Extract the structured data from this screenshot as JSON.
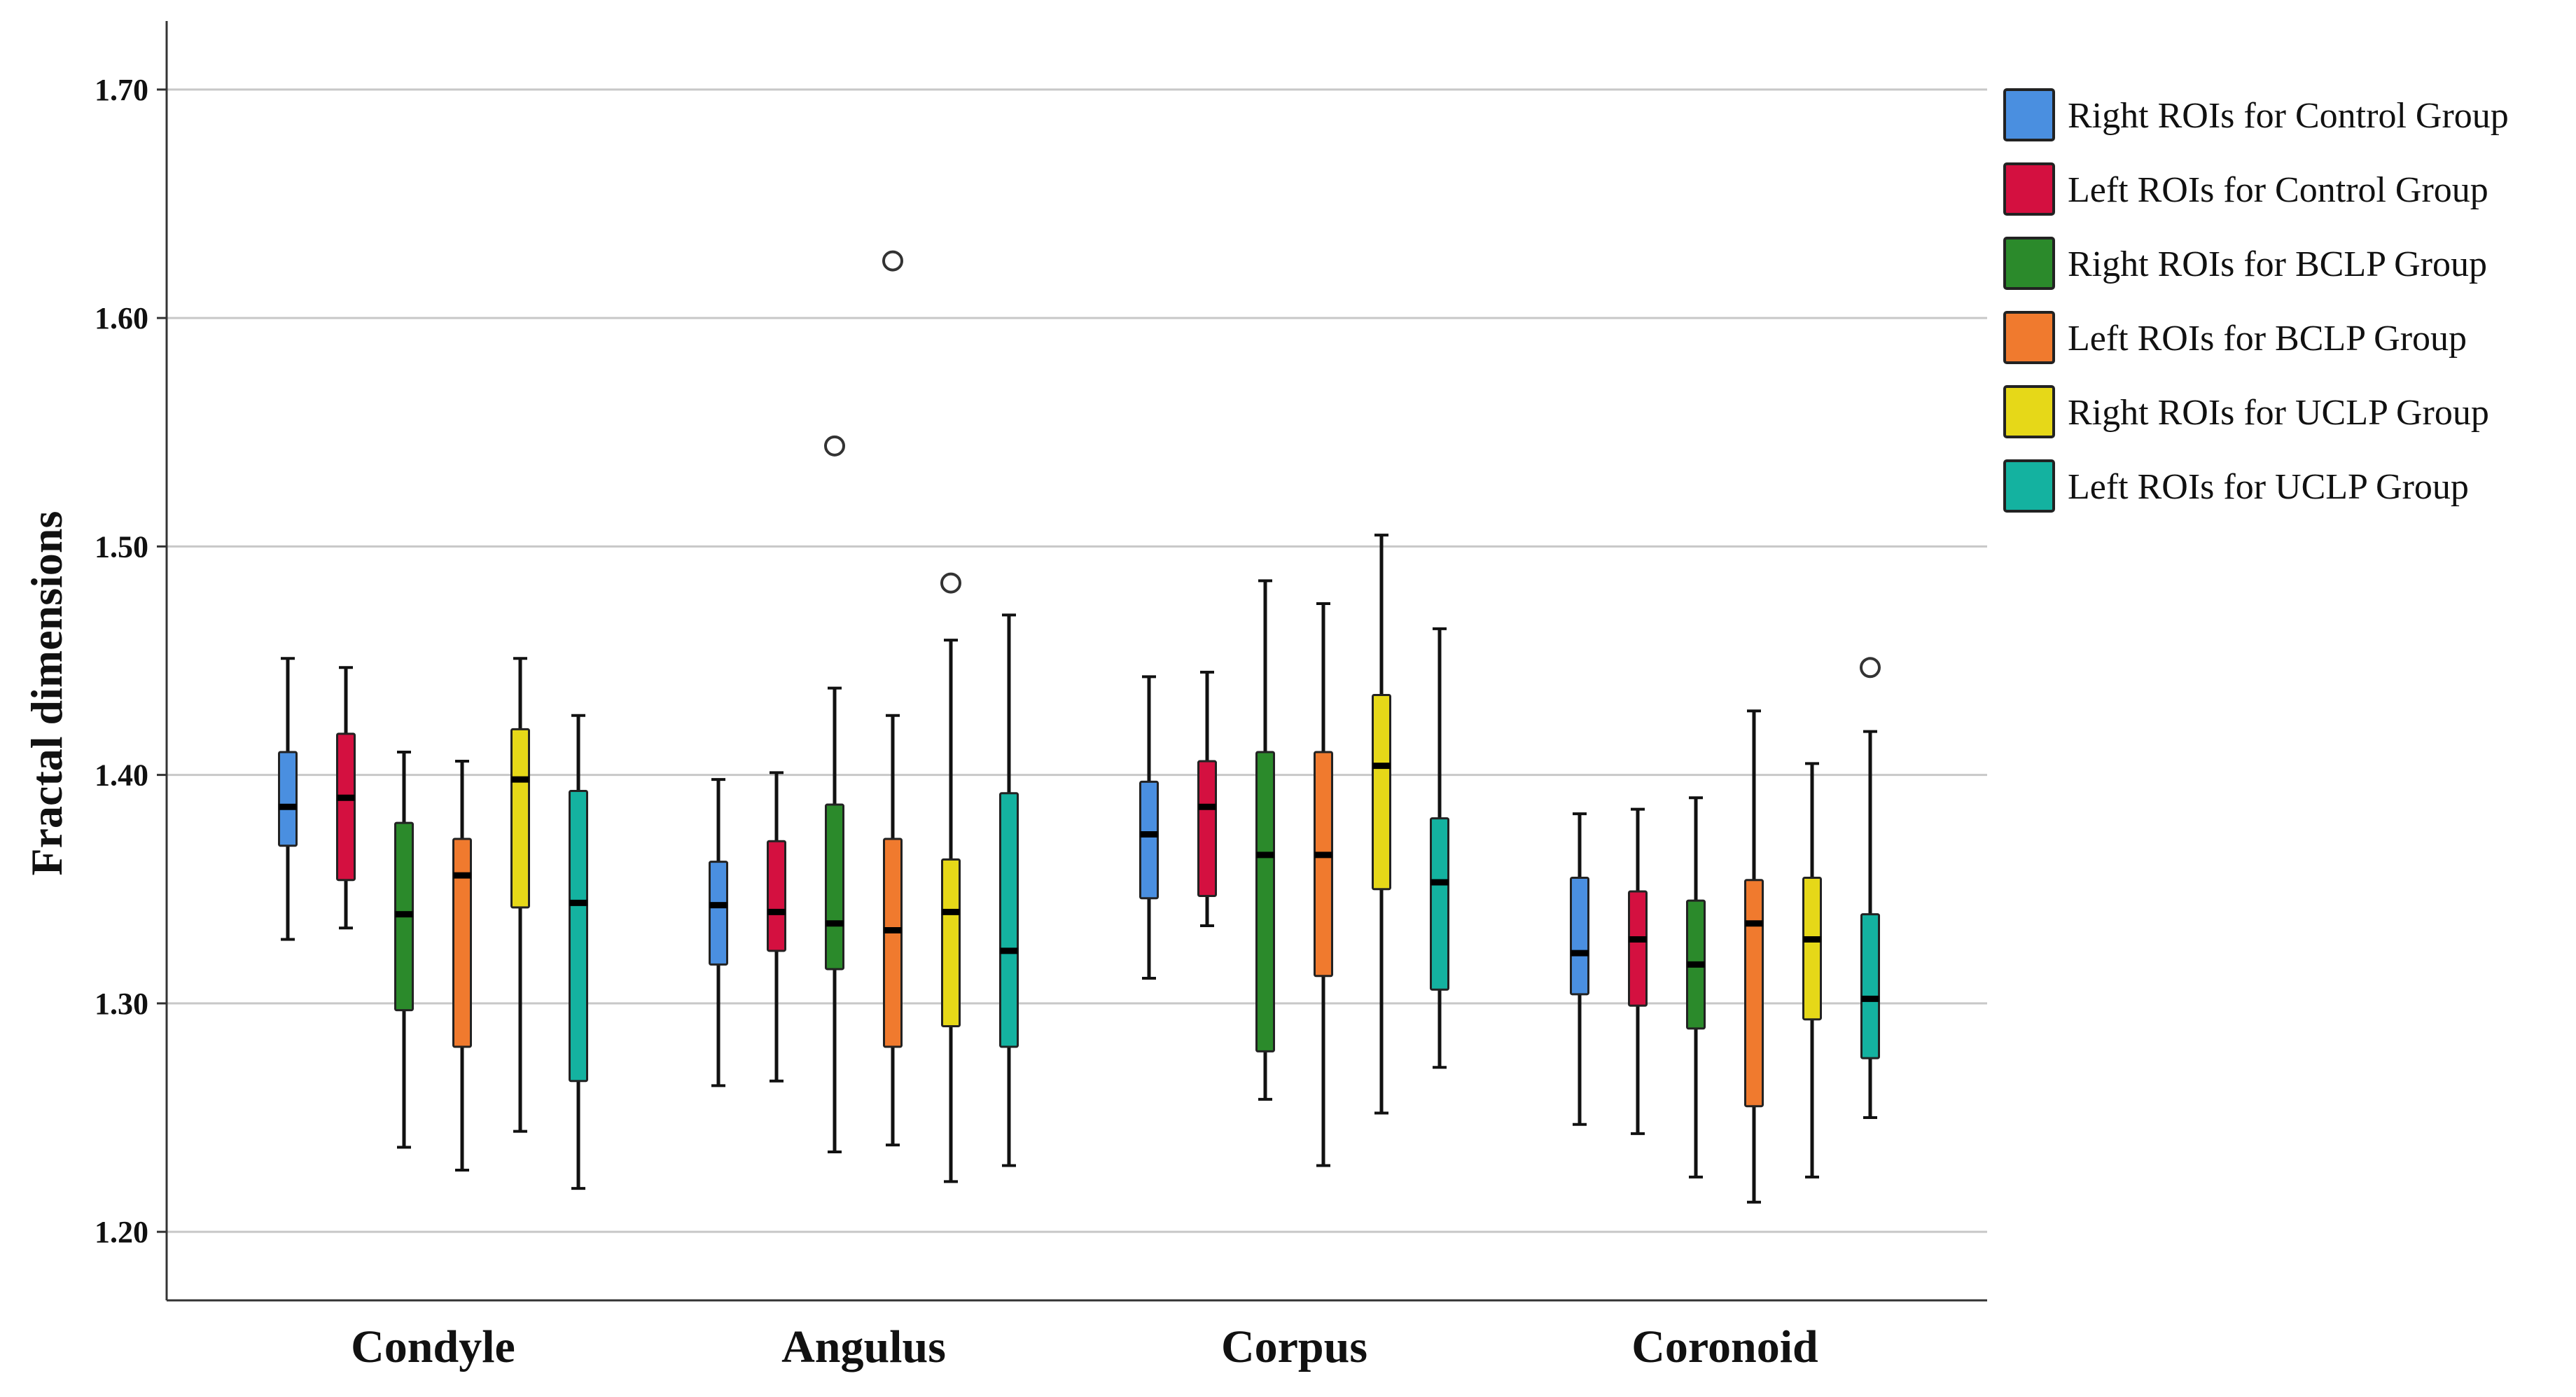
{
  "chart_data": {
    "type": "boxplot",
    "title": "",
    "xlabel": "",
    "ylabel": "Fractal dimensions",
    "ylim": [
      1.17,
      1.73
    ],
    "yticks": [
      "1.20",
      "1.30",
      "1.40",
      "1.50",
      "1.60",
      "1.70"
    ],
    "grid": true,
    "legend_position": "right",
    "categories": [
      "Condyle",
      "Angulus",
      "Corpus",
      "Coronoid"
    ],
    "series": [
      {
        "name": "Right ROIs for Control Group",
        "color": "#4a8fe0",
        "boxes": [
          {
            "min": 1.328,
            "q1": 1.369,
            "median": 1.386,
            "q3": 1.41,
            "max": 1.451,
            "outliers": []
          },
          {
            "min": 1.264,
            "q1": 1.317,
            "median": 1.343,
            "q3": 1.362,
            "max": 1.398,
            "outliers": []
          },
          {
            "min": 1.311,
            "q1": 1.346,
            "median": 1.374,
            "q3": 1.397,
            "max": 1.443,
            "outliers": []
          },
          {
            "min": 1.247,
            "q1": 1.304,
            "median": 1.322,
            "q3": 1.355,
            "max": 1.383,
            "outliers": []
          }
        ]
      },
      {
        "name": "Left ROIs for Control Group",
        "color": "#d41040",
        "boxes": [
          {
            "min": 1.333,
            "q1": 1.354,
            "median": 1.39,
            "q3": 1.418,
            "max": 1.447,
            "outliers": []
          },
          {
            "min": 1.266,
            "q1": 1.323,
            "median": 1.34,
            "q3": 1.371,
            "max": 1.401,
            "outliers": []
          },
          {
            "min": 1.334,
            "q1": 1.347,
            "median": 1.386,
            "q3": 1.406,
            "max": 1.445,
            "outliers": []
          },
          {
            "min": 1.243,
            "q1": 1.299,
            "median": 1.328,
            "q3": 1.349,
            "max": 1.385,
            "outliers": []
          }
        ]
      },
      {
        "name": "Right ROIs for BCLP Group",
        "color": "#2b8a2b",
        "boxes": [
          {
            "min": 1.237,
            "q1": 1.297,
            "median": 1.339,
            "q3": 1.379,
            "max": 1.41,
            "outliers": []
          },
          {
            "min": 1.235,
            "q1": 1.315,
            "median": 1.335,
            "q3": 1.387,
            "max": 1.438,
            "outliers": [
              1.544
            ]
          },
          {
            "min": 1.258,
            "q1": 1.279,
            "median": 1.365,
            "q3": 1.41,
            "max": 1.485,
            "outliers": []
          },
          {
            "min": 1.224,
            "q1": 1.289,
            "median": 1.317,
            "q3": 1.345,
            "max": 1.39,
            "outliers": []
          }
        ]
      },
      {
        "name": "Left ROIs for BCLP Group",
        "color": "#f07a2e",
        "boxes": [
          {
            "min": 1.227,
            "q1": 1.281,
            "median": 1.356,
            "q3": 1.372,
            "max": 1.406,
            "outliers": []
          },
          {
            "min": 1.238,
            "q1": 1.281,
            "median": 1.332,
            "q3": 1.372,
            "max": 1.426,
            "outliers": [
              1.625
            ]
          },
          {
            "min": 1.229,
            "q1": 1.312,
            "median": 1.365,
            "q3": 1.41,
            "max": 1.475,
            "outliers": []
          },
          {
            "min": 1.213,
            "q1": 1.255,
            "median": 1.335,
            "q3": 1.354,
            "max": 1.428,
            "outliers": []
          }
        ]
      },
      {
        "name": "Right ROIs for UCLP Group",
        "color": "#e6d818",
        "boxes": [
          {
            "min": 1.244,
            "q1": 1.342,
            "median": 1.398,
            "q3": 1.42,
            "max": 1.451,
            "outliers": []
          },
          {
            "min": 1.222,
            "q1": 1.29,
            "median": 1.34,
            "q3": 1.363,
            "max": 1.459,
            "outliers": [
              1.484
            ]
          },
          {
            "min": 1.252,
            "q1": 1.35,
            "median": 1.404,
            "q3": 1.435,
            "max": 1.505,
            "outliers": []
          },
          {
            "min": 1.224,
            "q1": 1.293,
            "median": 1.328,
            "q3": 1.355,
            "max": 1.405,
            "outliers": []
          }
        ]
      },
      {
        "name": "Left ROIs for UCLP Group",
        "color": "#14b2a0",
        "boxes": [
          {
            "min": 1.219,
            "q1": 1.266,
            "median": 1.344,
            "q3": 1.393,
            "max": 1.426,
            "outliers": []
          },
          {
            "min": 1.229,
            "q1": 1.281,
            "median": 1.323,
            "q3": 1.392,
            "max": 1.47,
            "outliers": []
          },
          {
            "min": 1.272,
            "q1": 1.306,
            "median": 1.353,
            "q3": 1.381,
            "max": 1.464,
            "outliers": []
          },
          {
            "min": 1.25,
            "q1": 1.276,
            "median": 1.302,
            "q3": 1.339,
            "max": 1.419,
            "outliers": [
              1.447
            ]
          }
        ]
      }
    ]
  }
}
